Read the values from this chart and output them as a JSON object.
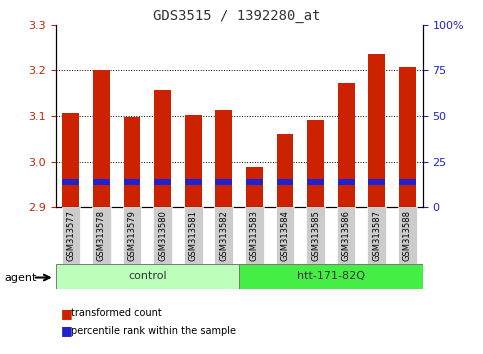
{
  "title": "GDS3515 / 1392280_at",
  "samples": [
    "GSM313577",
    "GSM313578",
    "GSM313579",
    "GSM313580",
    "GSM313581",
    "GSM313582",
    "GSM313583",
    "GSM313584",
    "GSM313585",
    "GSM313586",
    "GSM313587",
    "GSM313588"
  ],
  "transformed_counts": [
    3.107,
    3.2,
    3.097,
    3.157,
    3.102,
    3.113,
    2.987,
    3.06,
    3.09,
    3.173,
    3.235,
    3.207
  ],
  "base": 2.9,
  "blue_bar_bottom": 0.048,
  "blue_bar_height": 0.013,
  "ylim_left": [
    2.9,
    3.3
  ],
  "yticks_left": [
    2.9,
    3.0,
    3.1,
    3.2,
    3.3
  ],
  "yticks_right": [
    0,
    25,
    50,
    75,
    100
  ],
  "ylim_right": [
    0,
    100
  ],
  "groups": [
    {
      "label": "control",
      "start": 0,
      "end": 6,
      "color": "#bbffbb"
    },
    {
      "label": "htt-171-82Q",
      "start": 6,
      "end": 12,
      "color": "#44ee44"
    }
  ],
  "agent_label": "agent",
  "bar_color": "#cc2200",
  "percentile_color": "#2222cc",
  "bar_width": 0.55,
  "background_color": "#ffffff",
  "tick_label_color_left": "#cc2200",
  "tick_label_color_right": "#2222cc",
  "grid_color": "#000000",
  "x_tick_bg_color": "#cccccc",
  "grid_yticks": [
    3.0,
    3.1,
    3.2
  ]
}
